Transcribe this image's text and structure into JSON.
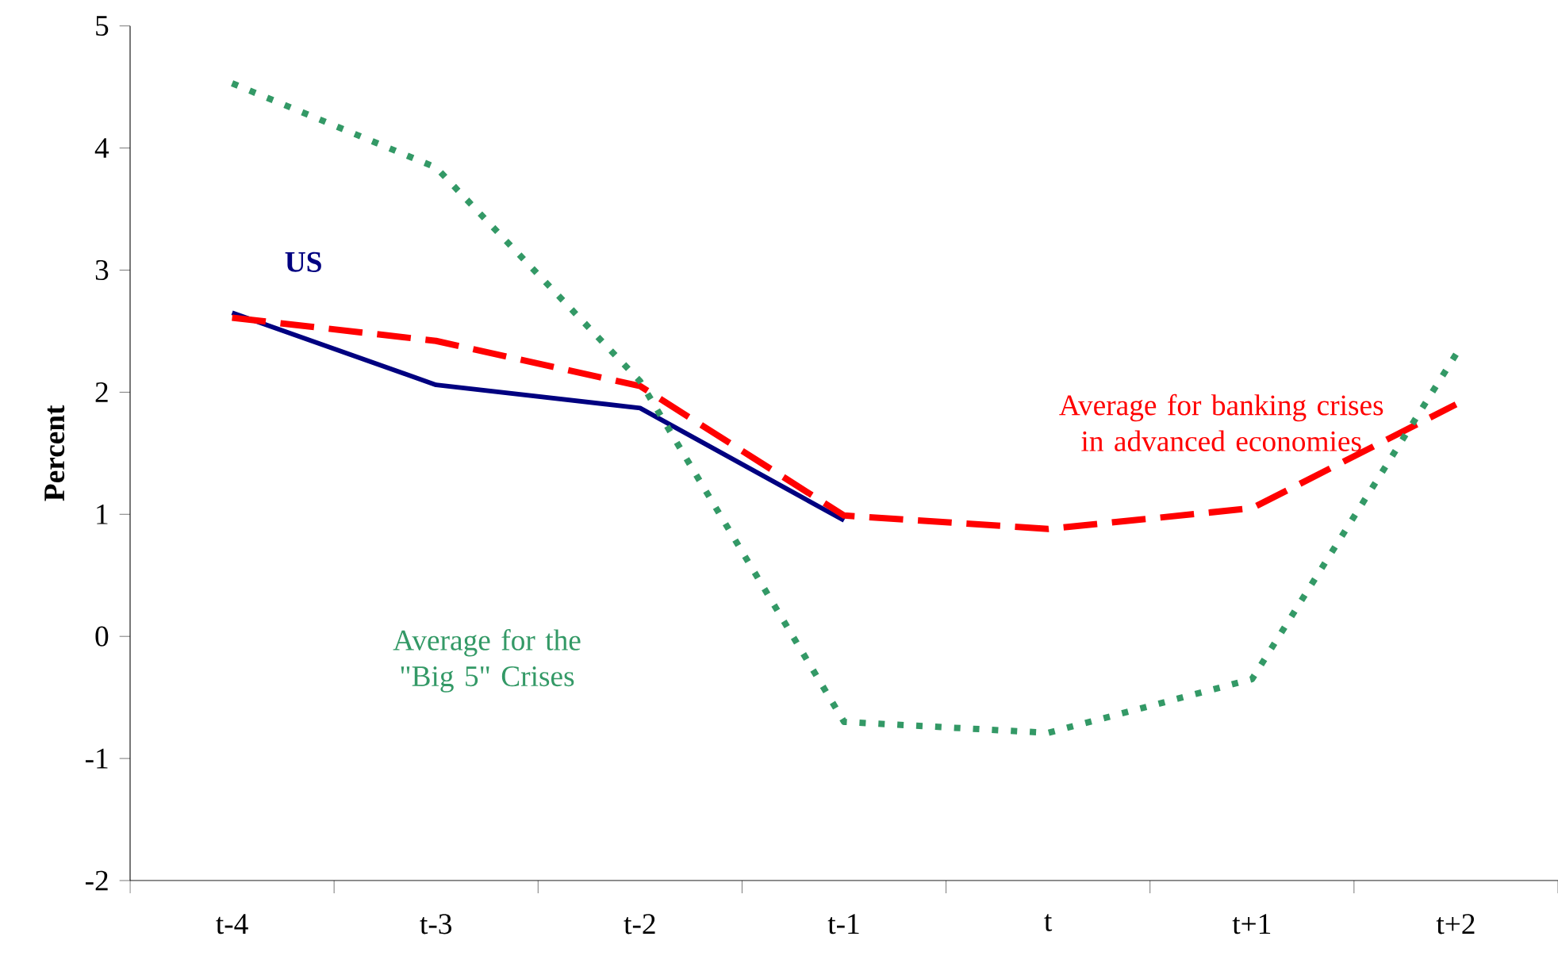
{
  "chart_data": {
    "type": "line",
    "ylabel": "Percent",
    "categories": [
      "t-4",
      "t-3",
      "t-2",
      "t-1",
      "t",
      "t+1",
      "t+2"
    ],
    "ylim": [
      -2,
      5
    ],
    "yticks": [
      -2,
      -1,
      0,
      1,
      2,
      3,
      4,
      5
    ],
    "legend": false,
    "grid": false,
    "marker": "none",
    "series": [
      {
        "name": "US",
        "color": "#000080",
        "line_style": "solid",
        "values": [
          2.65,
          2.06,
          1.87,
          0.95,
          null,
          null,
          null
        ]
      },
      {
        "name": "Average for banking crises in advanced economies",
        "color": "#ff0000",
        "line_style": "dashed",
        "values": [
          2.61,
          2.42,
          2.05,
          0.99,
          0.88,
          1.05,
          1.9
        ]
      },
      {
        "name": "Average for the \"Big 5\" Crises",
        "color": "#339966",
        "line_style": "dotted",
        "values": [
          4.53,
          3.84,
          2.09,
          -0.7,
          -0.79,
          -0.35,
          2.31
        ]
      }
    ]
  }
}
